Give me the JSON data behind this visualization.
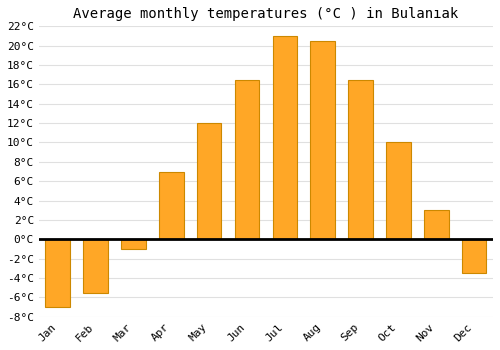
{
  "title": "Average monthly temperatures (°C ) in Bulanıak",
  "months": [
    "Jan",
    "Feb",
    "Mar",
    "Apr",
    "May",
    "Jun",
    "Jul",
    "Aug",
    "Sep",
    "Oct",
    "Nov",
    "Dec"
  ],
  "temperatures": [
    -7,
    -5.5,
    -1,
    7,
    12,
    16.5,
    21,
    20.5,
    16.5,
    10,
    3,
    -3.5
  ],
  "bar_color": "#FFA726",
  "bar_edge_color": "#CC8800",
  "ylim": [
    -8,
    22
  ],
  "yticks": [
    -8,
    -6,
    -4,
    -2,
    0,
    2,
    4,
    6,
    8,
    10,
    12,
    14,
    16,
    18,
    20,
    22
  ],
  "ytick_labels": [
    "-8°C",
    "-6°C",
    "-4°C",
    "-2°C",
    "0°C",
    "2°C",
    "4°C",
    "6°C",
    "8°C",
    "10°C",
    "12°C",
    "14°C",
    "16°C",
    "18°C",
    "20°C",
    "22°C"
  ],
  "background_color": "#ffffff",
  "plot_bg_color": "#ffffff",
  "grid_color": "#e0e0e0",
  "title_fontsize": 10,
  "tick_fontsize": 8,
  "bar_width": 0.65
}
